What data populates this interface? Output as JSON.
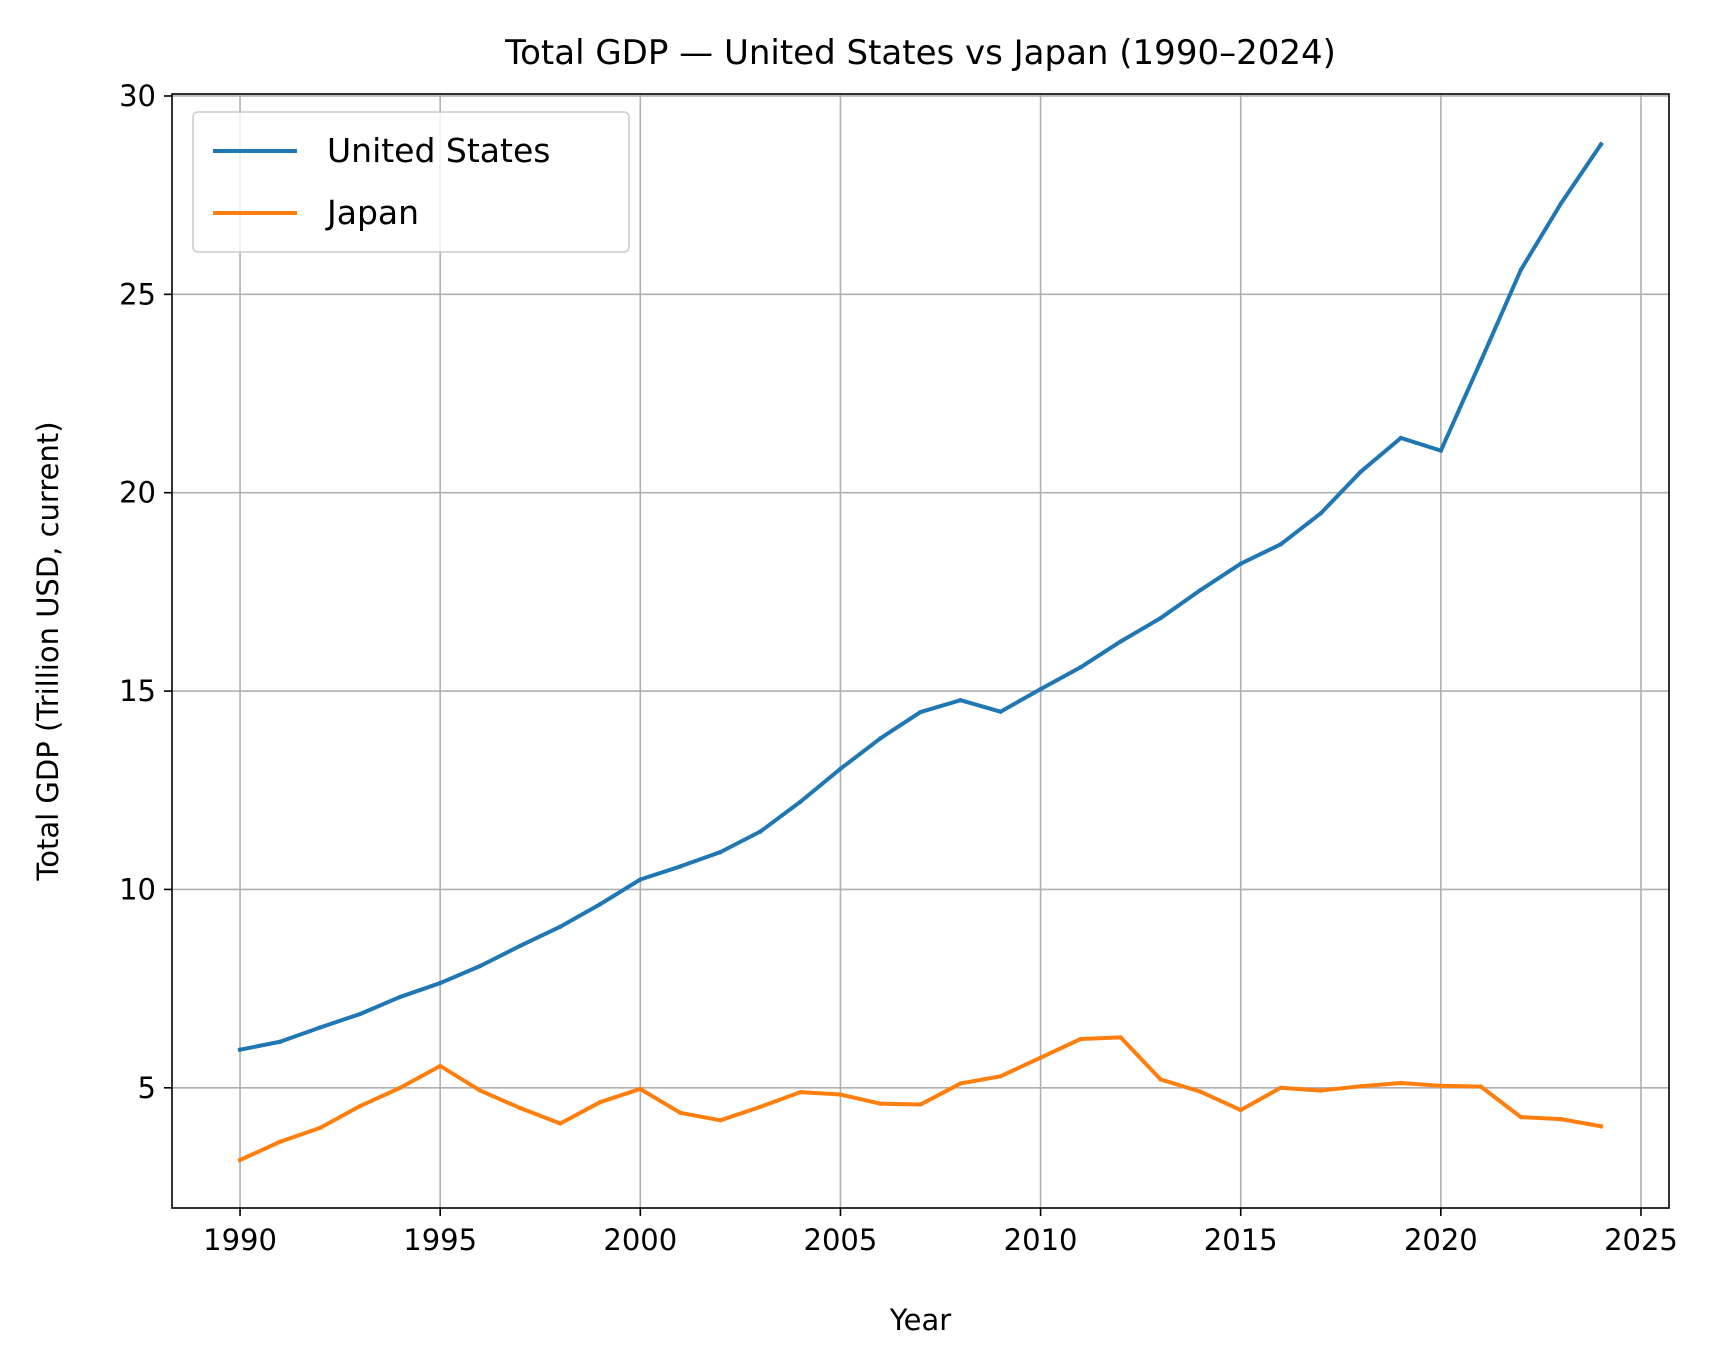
{
  "chart_data": {
    "type": "line",
    "title": "Total GDP — United States vs Japan (1990–2024)",
    "xlabel": "Year",
    "ylabel": "Total GDP (Trillion USD, current)",
    "xlim": [
      1988.3,
      2025.7
    ],
    "ylim": [
      1.97,
      30.05
    ],
    "xticks": [
      1990,
      1995,
      2000,
      2005,
      2010,
      2015,
      2020,
      2025
    ],
    "yticks": [
      5,
      10,
      15,
      20,
      25,
      30
    ],
    "grid": true,
    "legend_position": "top-left",
    "x": [
      1990,
      1991,
      1992,
      1993,
      1994,
      1995,
      1996,
      1997,
      1998,
      1999,
      2000,
      2001,
      2002,
      2003,
      2004,
      2005,
      2006,
      2007,
      2008,
      2009,
      2010,
      2011,
      2012,
      2013,
      2014,
      2015,
      2016,
      2017,
      2018,
      2019,
      2020,
      2021,
      2022,
      2023,
      2024
    ],
    "series": [
      {
        "name": "United States",
        "color": "#1f77b4",
        "values": [
          5.96,
          6.16,
          6.52,
          6.86,
          7.29,
          7.64,
          8.07,
          8.58,
          9.06,
          9.63,
          10.25,
          10.58,
          10.94,
          11.46,
          12.21,
          13.04,
          13.81,
          14.47,
          14.77,
          14.48,
          15.05,
          15.6,
          16.25,
          16.84,
          17.55,
          18.21,
          18.7,
          19.48,
          20.53,
          21.38,
          21.06,
          23.32,
          25.62,
          27.29,
          28.78
        ]
      },
      {
        "name": "Japan",
        "color": "#ff7f0e",
        "values": [
          3.18,
          3.64,
          3.99,
          4.54,
          5.0,
          5.55,
          4.93,
          4.49,
          4.1,
          4.64,
          4.97,
          4.37,
          4.18,
          4.52,
          4.89,
          4.83,
          4.6,
          4.58,
          5.11,
          5.29,
          5.76,
          6.23,
          6.27,
          5.21,
          4.9,
          4.44,
          5.0,
          4.93,
          5.04,
          5.12,
          5.05,
          5.03,
          4.26,
          4.21,
          4.03
        ]
      }
    ]
  }
}
